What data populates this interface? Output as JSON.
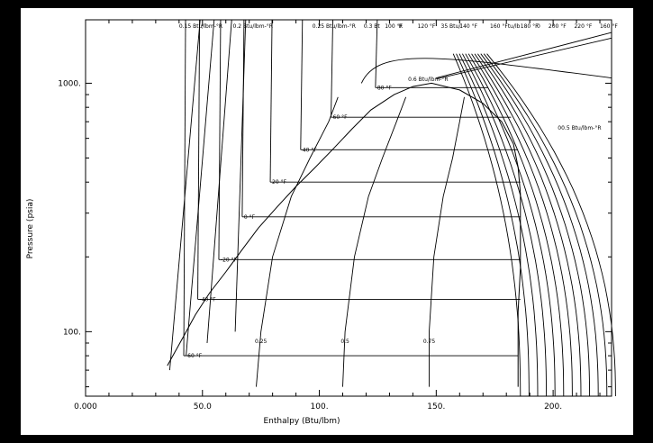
{
  "chart_data": {
    "type": "line",
    "title": "",
    "xlabel": "Enthalpy (Btu/lbm)",
    "ylabel": "Pressure (psia)",
    "xlim": [
      0,
      225
    ],
    "ylim_log": [
      55,
      1800
    ],
    "y_scale": "log",
    "x_tick_labels": [
      "0.000",
      "50.0",
      "100.",
      "150.",
      "200."
    ],
    "x_ticks": [
      0,
      50,
      100,
      150,
      200
    ],
    "y_tick_labels": [
      "100.",
      "1000."
    ],
    "y_ticks": [
      100,
      1000
    ],
    "grid": false,
    "saturation_dome": {
      "left": [
        [
          35,
          73
        ],
        [
          42,
          96
        ],
        [
          47,
          117
        ],
        [
          53,
          143
        ],
        [
          60,
          174
        ],
        [
          67,
          214
        ],
        [
          74,
          262
        ],
        [
          82,
          318
        ],
        [
          90,
          384
        ],
        [
          98,
          456
        ],
        [
          106,
          545
        ],
        [
          114,
          655
        ],
        [
          122,
          780
        ],
        [
          132,
          900
        ],
        [
          140,
          970
        ],
        [
          148,
          1000
        ]
      ],
      "right": [
        [
          148,
          1000
        ],
        [
          160,
          940
        ],
        [
          170,
          830
        ],
        [
          178,
          700
        ],
        [
          183,
          570
        ],
        [
          185,
          460
        ],
        [
          186,
          360
        ],
        [
          186,
          260
        ],
        [
          186,
          180
        ],
        [
          185,
          120
        ],
        [
          185,
          60
        ]
      ]
    },
    "isotherms": [
      {
        "label": "-60 °F",
        "p": 80,
        "h_liq": 42,
        "h_vap": 185
      },
      {
        "label": "-40 °F",
        "p": 135,
        "h_liq": 48,
        "h_vap": 186
      },
      {
        "label": "-20 °F",
        "p": 195,
        "h_liq": 57,
        "h_vap": 186
      },
      {
        "label": "0 °F",
        "p": 290,
        "h_liq": 67,
        "h_vap": 186
      },
      {
        "label": "20 °F",
        "p": 400,
        "h_liq": 79,
        "h_vap": 186
      },
      {
        "label": "40 °F",
        "p": 540,
        "h_liq": 92,
        "h_vap": 185
      },
      {
        "label": "60 °F",
        "p": 730,
        "h_liq": 105,
        "h_vap": 182
      },
      {
        "label": "80 °F",
        "p": 960,
        "h_liq": 124,
        "h_vap": 172
      }
    ],
    "quality_lines": [
      {
        "label": "0.25",
        "points": [
          [
            73,
            60
          ],
          [
            75,
            100
          ],
          [
            80,
            200
          ],
          [
            88,
            350
          ],
          [
            96,
            500
          ],
          [
            104,
            700
          ],
          [
            108,
            880
          ]
        ]
      },
      {
        "label": "0.5",
        "points": [
          [
            110,
            60
          ],
          [
            111,
            100
          ],
          [
            115,
            200
          ],
          [
            121,
            350
          ],
          [
            127,
            500
          ],
          [
            133,
            700
          ],
          [
            137,
            880
          ]
        ]
      },
      {
        "label": "0.75",
        "points": [
          [
            147,
            60
          ],
          [
            147,
            100
          ],
          [
            149,
            200
          ],
          [
            153,
            350
          ],
          [
            157,
            500
          ],
          [
            160,
            700
          ],
          [
            162,
            880
          ]
        ]
      }
    ],
    "top_labels": [
      "0.15 Btu/lbm-°R",
      "0.2 Btu/lbm-°R",
      "0.25 Btu/lbm-°R",
      "0.3 Bt",
      "100 °F",
      "R",
      "120 °F",
      "35 Btu/l",
      "140 °F",
      "160 °Ftu/lb",
      "180 °F",
      "0",
      "200 °F",
      "220 °F",
      "160 °F"
    ],
    "inner_labels": [
      "0.6 Btu/lbm-°R",
      "00.5 Btu/lbm-°R"
    ]
  }
}
